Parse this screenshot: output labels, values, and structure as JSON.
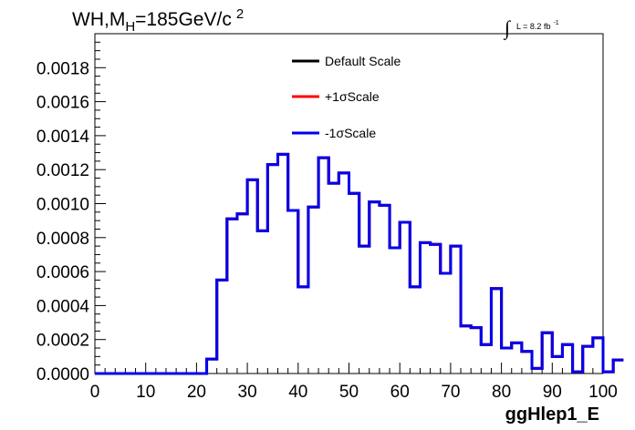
{
  "chart_data": {
    "type": "line",
    "title": {
      "prefix": "WH,M",
      "subscript": "H",
      "middle": "=185GeV/c",
      "superscript": "2"
    },
    "lumi": {
      "symbol": "∫",
      "text": "L = 8.2 fb",
      "superscript": "-1"
    },
    "xlabel": "ggHlep1_E",
    "ylabel": "",
    "xlim": [
      0,
      100
    ],
    "ylim": [
      0,
      0.002
    ],
    "x_ticks": [
      0,
      10,
      20,
      30,
      40,
      50,
      60,
      70,
      80,
      90,
      100
    ],
    "x_tick_labels": [
      "0",
      "10",
      "20",
      "30",
      "40",
      "50",
      "60",
      "70",
      "80",
      "90",
      "100"
    ],
    "y_ticks": [
      0,
      0.0002,
      0.0004,
      0.0006,
      0.0008,
      0.001,
      0.0012,
      0.0014,
      0.0016,
      0.0018
    ],
    "y_tick_labels": [
      "0.0000",
      "0.0002",
      "0.0004",
      "0.0006",
      "0.0008",
      "0.0010",
      "0.0012",
      "0.0014",
      "0.0016",
      "0.0018"
    ],
    "grid": false,
    "legend_position": "top-center",
    "bin_width": 2,
    "bin_edges_start": 0,
    "series": [
      {
        "name": "Default Scale",
        "color": "#000000",
        "values": [
          0,
          0,
          0,
          0,
          0,
          0,
          0,
          0,
          0,
          0,
          0,
          8.5e-05,
          0.00055,
          0.00091,
          0.00094,
          0.00114,
          0.00084,
          0.00123,
          0.00129,
          0.00096,
          0.00051,
          0.00098,
          0.00127,
          0.00112,
          0.00118,
          0.00106,
          0.00075,
          0.00101,
          0.00099,
          0.00074,
          0.00089,
          0.00051,
          0.00077,
          0.00076,
          0.00059,
          0.00075,
          0.00028,
          0.00027,
          0.00017,
          0.0005,
          0.00015,
          0.00018,
          0.00013,
          3e-05,
          0.00024,
          0.0001,
          0.00017,
          1e-05,
          0.00016,
          0.00021,
          1e-05,
          8e-05
        ]
      },
      {
        "name": "+1σScale",
        "color": "#ff0000",
        "values": [
          0,
          0,
          0,
          0,
          0,
          0,
          0,
          0,
          0,
          0,
          0,
          8.5e-05,
          0.00055,
          0.00091,
          0.00094,
          0.00114,
          0.00084,
          0.00123,
          0.00129,
          0.00096,
          0.00051,
          0.00098,
          0.00127,
          0.00112,
          0.00118,
          0.00106,
          0.00075,
          0.00101,
          0.00099,
          0.00074,
          0.00089,
          0.00051,
          0.00077,
          0.00076,
          0.00059,
          0.00075,
          0.00028,
          0.00027,
          0.00017,
          0.0005,
          0.00015,
          0.00018,
          0.00013,
          3e-05,
          0.00024,
          0.0001,
          0.00017,
          1e-05,
          0.00016,
          0.00021,
          1e-05,
          8e-05
        ]
      },
      {
        "name": "-1σScale",
        "color": "#0000ee",
        "values": [
          0,
          0,
          0,
          0,
          0,
          0,
          0,
          0,
          0,
          0,
          0,
          8.5e-05,
          0.00055,
          0.00091,
          0.00094,
          0.00114,
          0.00084,
          0.00123,
          0.00129,
          0.00096,
          0.00051,
          0.00098,
          0.00127,
          0.00112,
          0.00118,
          0.00106,
          0.00075,
          0.00101,
          0.00099,
          0.00074,
          0.00089,
          0.00051,
          0.00077,
          0.00076,
          0.00059,
          0.00075,
          0.00028,
          0.00027,
          0.00017,
          0.0005,
          0.00015,
          0.00018,
          0.00013,
          3e-05,
          0.00024,
          0.0001,
          0.00017,
          1e-05,
          0.00016,
          0.00021,
          1e-05,
          8e-05
        ]
      }
    ]
  }
}
